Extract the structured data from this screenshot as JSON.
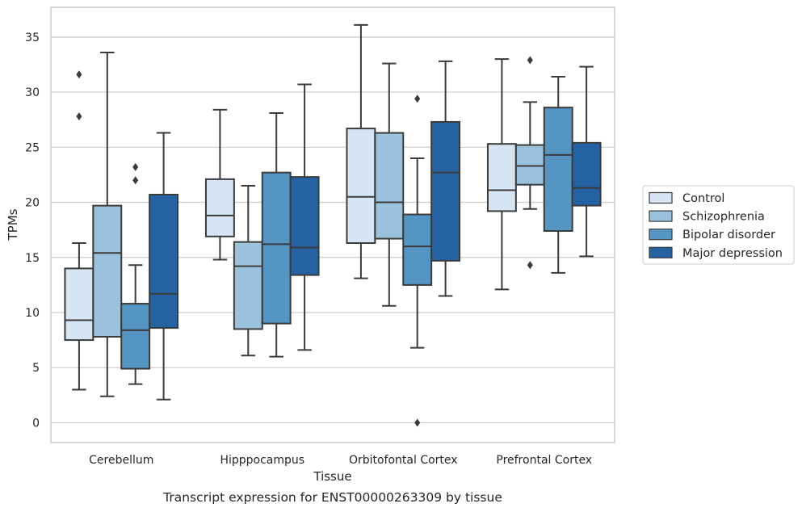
{
  "chart_data": {
    "type": "box",
    "title": "Transcript expression for ENST00000263309 by tissue",
    "xlabel": "Tissue",
    "ylabel": "TPMs",
    "ylim": [
      -1.8,
      37.7
    ],
    "yticks": [
      0,
      5,
      10,
      15,
      20,
      25,
      30,
      35
    ],
    "grid": "horizontal",
    "legend_position": "right",
    "categories": [
      "Cerebellum",
      "Hipppocampus",
      "Orbitofontal Cortex",
      "Prefrontal Cortex"
    ],
    "series": [
      {
        "name": "Control",
        "color": "#d6e5f4",
        "boxes": [
          {
            "whisker_low": 3.0,
            "q1": 7.5,
            "median": 9.3,
            "q3": 14.0,
            "whisker_high": 16.3,
            "outliers": [
              27.8,
              31.6
            ]
          },
          {
            "whisker_low": 14.8,
            "q1": 16.9,
            "median": 18.8,
            "q3": 22.1,
            "whisker_high": 28.4,
            "outliers": []
          },
          {
            "whisker_low": 13.1,
            "q1": 16.3,
            "median": 20.5,
            "q3": 26.7,
            "whisker_high": 36.1,
            "outliers": []
          },
          {
            "whisker_low": 12.1,
            "q1": 19.2,
            "median": 21.1,
            "q3": 25.3,
            "whisker_high": 33.0,
            "outliers": []
          }
        ]
      },
      {
        "name": "Schizophrenia",
        "color": "#9ac2dd",
        "boxes": [
          {
            "whisker_low": 2.4,
            "q1": 7.8,
            "median": 15.4,
            "q3": 19.7,
            "whisker_high": 33.6,
            "outliers": []
          },
          {
            "whisker_low": 6.1,
            "q1": 8.5,
            "median": 14.2,
            "q3": 16.4,
            "whisker_high": 21.5,
            "outliers": []
          },
          {
            "whisker_low": 10.6,
            "q1": 16.7,
            "median": 20.0,
            "q3": 26.3,
            "whisker_high": 32.6,
            "outliers": []
          },
          {
            "whisker_low": 19.4,
            "q1": 21.6,
            "median": 23.3,
            "q3": 25.2,
            "whisker_high": 29.1,
            "outliers": [
              14.3,
              32.9
            ]
          }
        ]
      },
      {
        "name": "Bipolar disorder",
        "color": "#5595c3",
        "boxes": [
          {
            "whisker_low": 3.5,
            "q1": 4.9,
            "median": 8.4,
            "q3": 10.8,
            "whisker_high": 14.3,
            "outliers": [
              22.0,
              23.2
            ]
          },
          {
            "whisker_low": 6.0,
            "q1": 9.0,
            "median": 16.2,
            "q3": 22.7,
            "whisker_high": 28.1,
            "outliers": []
          },
          {
            "whisker_low": 6.8,
            "q1": 12.5,
            "median": 16.0,
            "q3": 18.9,
            "whisker_high": 24.0,
            "outliers": [
              0.0,
              29.4
            ]
          },
          {
            "whisker_low": 13.6,
            "q1": 17.4,
            "median": 24.3,
            "q3": 28.6,
            "whisker_high": 31.4,
            "outliers": []
          }
        ]
      },
      {
        "name": "Major depression",
        "color": "#2562a3",
        "boxes": [
          {
            "whisker_low": 2.1,
            "q1": 8.6,
            "median": 11.7,
            "q3": 20.7,
            "whisker_high": 26.3,
            "outliers": []
          },
          {
            "whisker_low": 6.6,
            "q1": 13.4,
            "median": 15.9,
            "q3": 22.3,
            "whisker_high": 30.7,
            "outliers": []
          },
          {
            "whisker_low": 11.5,
            "q1": 14.7,
            "median": 22.7,
            "q3": 27.3,
            "whisker_high": 32.8,
            "outliers": []
          },
          {
            "whisker_low": 15.1,
            "q1": 19.7,
            "median": 21.3,
            "q3": 25.4,
            "whisker_high": 32.3,
            "outliers": []
          }
        ]
      }
    ]
  }
}
